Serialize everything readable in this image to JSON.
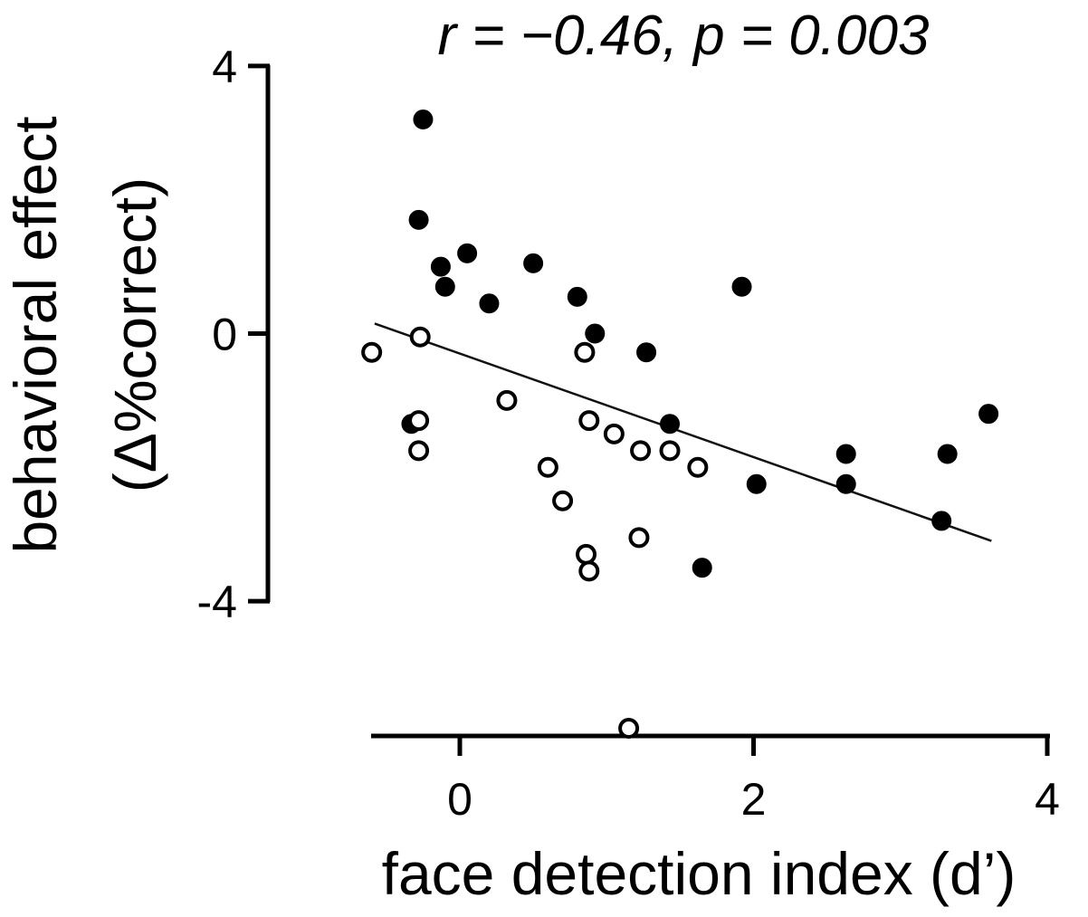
{
  "chart_data": {
    "type": "scatter",
    "title": "r = −0.46, p = 0.003",
    "xlabel": "face detection index (d’)",
    "ylabel_line1": "behavioral effect",
    "ylabel_line2": "(Δ%correct)",
    "xlim": [
      -0.6,
      4
    ],
    "ylim": [
      -4,
      4
    ],
    "x_ticks": [
      {
        "value": 0,
        "label": "0"
      },
      {
        "value": 2,
        "label": "2"
      },
      {
        "value": 4,
        "label": "4"
      }
    ],
    "y_ticks": [
      {
        "value": 4,
        "label": "4"
      },
      {
        "value": 0,
        "label": "0"
      },
      {
        "value": -4,
        "label": "-4"
      }
    ],
    "grid": false,
    "marker_color": "#000000",
    "series": [
      {
        "marker": "filled",
        "points": [
          [
            -0.25,
            3.2
          ],
          [
            -0.28,
            1.7
          ],
          [
            -0.13,
            1.0
          ],
          [
            -0.1,
            0.7
          ],
          [
            0.05,
            1.2
          ],
          [
            0.2,
            0.45
          ],
          [
            0.5,
            1.05
          ],
          [
            0.8,
            0.55
          ],
          [
            0.92,
            0.0
          ],
          [
            1.27,
            -0.28
          ],
          [
            1.92,
            0.7
          ],
          [
            -0.33,
            -1.35
          ],
          [
            1.43,
            -1.35
          ],
          [
            2.02,
            -2.25
          ],
          [
            2.63,
            -1.8
          ],
          [
            2.63,
            -2.25
          ],
          [
            3.28,
            -2.8
          ],
          [
            3.32,
            -1.8
          ],
          [
            3.6,
            -1.2
          ],
          [
            1.65,
            -3.5
          ]
        ]
      },
      {
        "marker": "open",
        "points": [
          [
            -0.6,
            -0.28
          ],
          [
            -0.27,
            -0.05
          ],
          [
            -0.28,
            -1.3
          ],
          [
            -0.28,
            -1.75
          ],
          [
            0.32,
            -1.0
          ],
          [
            0.85,
            -0.28
          ],
          [
            0.88,
            -1.3
          ],
          [
            1.05,
            -1.5
          ],
          [
            1.23,
            -1.75
          ],
          [
            1.43,
            -1.75
          ],
          [
            1.62,
            -2.0
          ],
          [
            0.6,
            -2.0
          ],
          [
            0.7,
            -2.5
          ],
          [
            0.86,
            -3.3
          ],
          [
            0.88,
            -3.55
          ],
          [
            1.22,
            -3.05
          ],
          [
            1.15,
            -5.9
          ]
        ]
      }
    ],
    "trendline": {
      "x": [
        -0.58,
        3.62
      ],
      "y": [
        0.15,
        -3.1
      ]
    }
  }
}
